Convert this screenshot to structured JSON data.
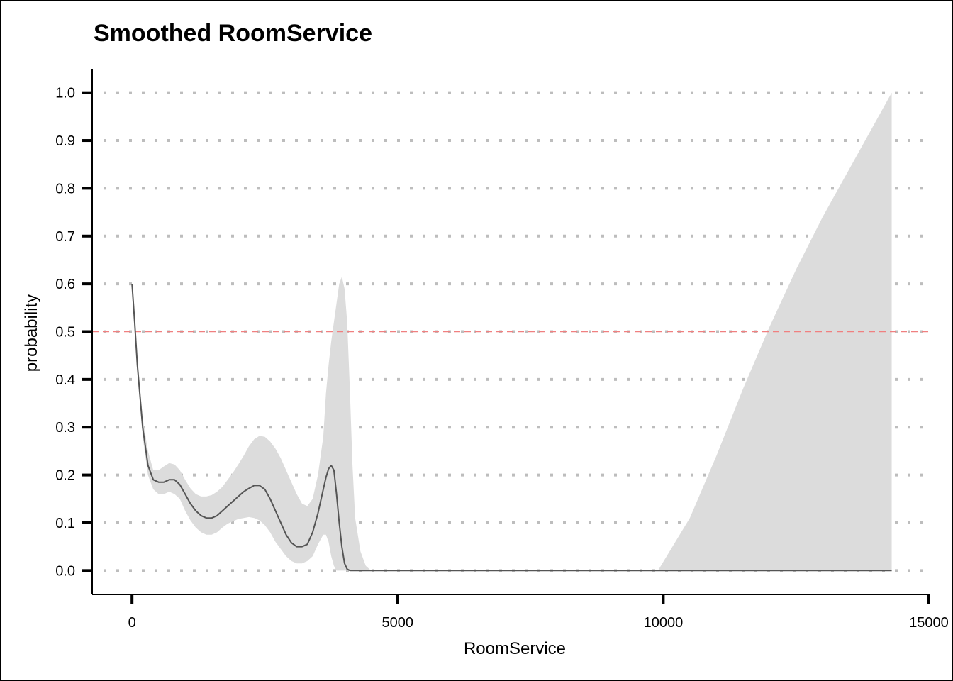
{
  "chart_data": {
    "type": "line",
    "title": "Smoothed RoomService",
    "xlabel": "RoomService",
    "ylabel": "probability",
    "xlim": [
      -750,
      15000
    ],
    "ylim": [
      -0.05,
      1.05
    ],
    "x_ticks": [
      0,
      5000,
      10000,
      15000
    ],
    "x_tick_labels": [
      "0",
      "5000",
      "10000",
      "15000"
    ],
    "y_ticks": [
      0.0,
      0.1,
      0.2,
      0.3,
      0.4,
      0.5,
      0.6,
      0.7,
      0.8,
      0.9,
      1.0
    ],
    "y_tick_labels": [
      "0.0",
      "0.1",
      "0.2",
      "0.3",
      "0.4",
      "0.5",
      "0.6",
      "0.7",
      "0.8",
      "0.9",
      "1.0"
    ],
    "grid": "horizontal dotted",
    "reference_line": {
      "y": 0.5,
      "color": "#f08080",
      "style": "dashed"
    },
    "series": [
      {
        "color": "#555555",
        "band_color": "#dcdcdc",
        "x": [
          0,
          50,
          100,
          200,
          300,
          400,
          500,
          600,
          700,
          800,
          900,
          1000,
          1100,
          1200,
          1300,
          1400,
          1500,
          1600,
          1700,
          1800,
          1900,
          2000,
          2100,
          2200,
          2300,
          2400,
          2500,
          2600,
          2700,
          2800,
          2900,
          3000,
          3100,
          3200,
          3300,
          3400,
          3500,
          3600,
          3650,
          3700,
          3750,
          3800,
          3850,
          3900,
          3950,
          4000,
          4050,
          4100,
          4150,
          4200,
          4300,
          4400,
          4500,
          5000,
          6000,
          7000,
          8000,
          9000,
          9900,
          10500,
          11000,
          11500,
          12000,
          12500,
          13000,
          13500,
          14000,
          14300
        ],
        "y": [
          0.6,
          0.52,
          0.43,
          0.3,
          0.22,
          0.19,
          0.185,
          0.185,
          0.19,
          0.19,
          0.18,
          0.16,
          0.14,
          0.125,
          0.115,
          0.11,
          0.11,
          0.115,
          0.125,
          0.135,
          0.145,
          0.155,
          0.165,
          0.172,
          0.178,
          0.178,
          0.17,
          0.15,
          0.125,
          0.1,
          0.075,
          0.058,
          0.05,
          0.05,
          0.055,
          0.08,
          0.12,
          0.17,
          0.195,
          0.213,
          0.22,
          0.21,
          0.16,
          0.1,
          0.05,
          0.015,
          0.003,
          0.0,
          0.0,
          0.0,
          0.0,
          0.0,
          0.0,
          0.0,
          0.0,
          0.0,
          0.0,
          0.0,
          0.0,
          0.0,
          0.0,
          0.0,
          0.0,
          0.0,
          0.0,
          0.0,
          0.0,
          0.0
        ],
        "lower": [
          0.6,
          0.52,
          0.42,
          0.28,
          0.2,
          0.17,
          0.16,
          0.16,
          0.165,
          0.16,
          0.15,
          0.125,
          0.105,
          0.09,
          0.08,
          0.075,
          0.075,
          0.08,
          0.09,
          0.098,
          0.103,
          0.108,
          0.11,
          0.112,
          0.11,
          0.105,
          0.095,
          0.08,
          0.06,
          0.045,
          0.03,
          0.02,
          0.015,
          0.015,
          0.02,
          0.03,
          0.055,
          0.075,
          0.075,
          0.06,
          0.03,
          0.01,
          0.0,
          0.0,
          0.0,
          0.0,
          0.0,
          0.0,
          0.0,
          0.0,
          0.0,
          0.0,
          0.0,
          0.0,
          0.0,
          0.0,
          0.0,
          0.0,
          0.0,
          0.0,
          0.0,
          0.0,
          0.0,
          0.0,
          0.0,
          0.0,
          0.0,
          0.0
        ],
        "upper": [
          0.6,
          0.52,
          0.45,
          0.32,
          0.25,
          0.21,
          0.21,
          0.218,
          0.225,
          0.222,
          0.21,
          0.19,
          0.172,
          0.16,
          0.155,
          0.155,
          0.158,
          0.165,
          0.175,
          0.19,
          0.205,
          0.222,
          0.24,
          0.26,
          0.275,
          0.282,
          0.28,
          0.27,
          0.255,
          0.235,
          0.21,
          0.185,
          0.16,
          0.14,
          0.135,
          0.15,
          0.2,
          0.28,
          0.37,
          0.43,
          0.48,
          0.52,
          0.56,
          0.6,
          0.615,
          0.59,
          0.52,
          0.38,
          0.22,
          0.11,
          0.04,
          0.01,
          0.0,
          0.0,
          0.0,
          0.0,
          0.0,
          0.0,
          0.0,
          0.11,
          0.24,
          0.38,
          0.51,
          0.63,
          0.74,
          0.84,
          0.94,
          1.0
        ]
      }
    ]
  }
}
